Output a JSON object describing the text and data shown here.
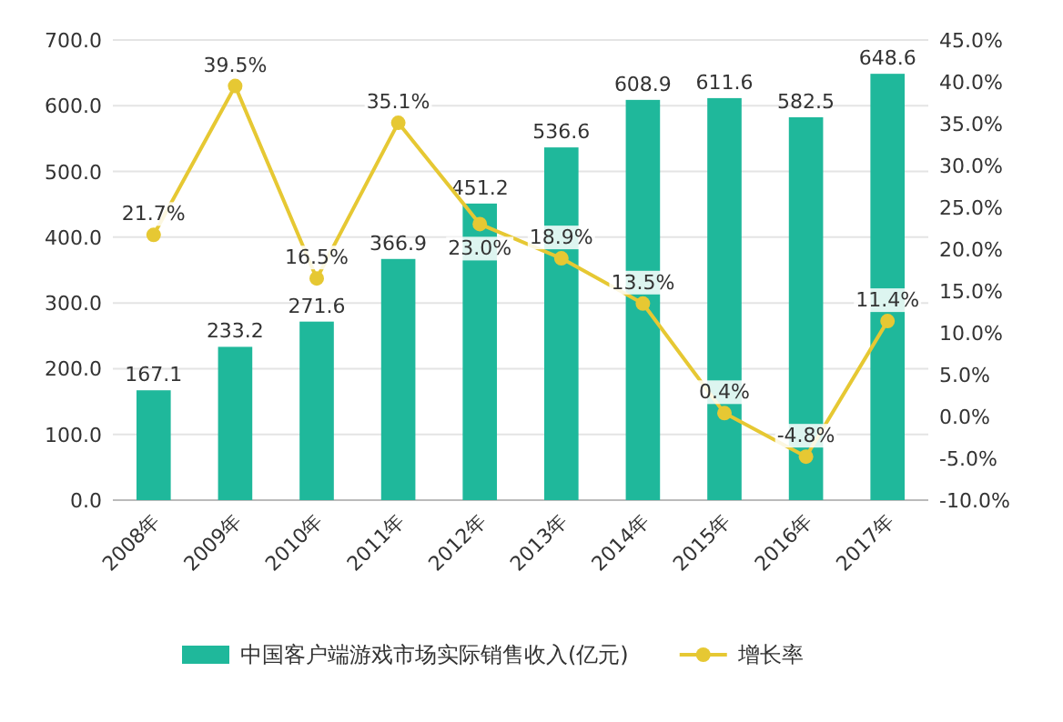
{
  "chart_data": {
    "type": "bar",
    "categories": [
      "2008年",
      "2009年",
      "2010年",
      "2011年",
      "2012年",
      "2013年",
      "2014年",
      "2015年",
      "2016年",
      "2017年"
    ],
    "series": [
      {
        "name": "中国客户端游戏市场实际销售收入(亿元)",
        "color": "#1fb89b",
        "values": [
          167.1,
          233.2,
          271.6,
          366.9,
          451.2,
          536.6,
          608.9,
          611.6,
          582.5,
          648.6
        ],
        "value_labels": [
          "167.1",
          "233.2",
          "271.6",
          "366.9",
          "451.2",
          "536.6",
          "608.9",
          "611.6",
          "582.5",
          "648.6"
        ]
      },
      {
        "name": "增长率",
        "type": "line",
        "axis": "y2",
        "color": "#e6c833",
        "marker": "circle",
        "values": [
          21.7,
          39.5,
          16.5,
          35.1,
          23.0,
          18.9,
          13.5,
          0.4,
          -4.8,
          11.4
        ],
        "value_labels": [
          "21.7%",
          "39.5%",
          "16.5%",
          "35.1%",
          "23.0%",
          "18.9%",
          "13.5%",
          "0.4%",
          "-4.8%",
          "11.4%"
        ]
      }
    ],
    "ylim": [
      0,
      700
    ],
    "yticks": [
      {
        "value": 0,
        "label": "0.0"
      },
      {
        "value": 100,
        "label": "100.0"
      },
      {
        "value": 200,
        "label": "200.0"
      },
      {
        "value": 300,
        "label": "300.0"
      },
      {
        "value": 400,
        "label": "400.0"
      },
      {
        "value": 500,
        "label": "500.0"
      },
      {
        "value": 600,
        "label": "600.0"
      },
      {
        "value": 700,
        "label": "700.0"
      }
    ],
    "y2lim": [
      -10,
      45
    ],
    "y2ticks": [
      {
        "value": -10,
        "label": "-10.0%"
      },
      {
        "value": -5,
        "label": "-5.0%"
      },
      {
        "value": 0,
        "label": "0.0%"
      },
      {
        "value": 5,
        "label": "5.0%"
      },
      {
        "value": 10,
        "label": "10.0%"
      },
      {
        "value": 15,
        "label": "15.0%"
      },
      {
        "value": 20,
        "label": "20.0%"
      },
      {
        "value": 25,
        "label": "25.0%"
      },
      {
        "value": 30,
        "label": "30.0%"
      },
      {
        "value": 35,
        "label": "35.0%"
      },
      {
        "value": 40,
        "label": "40.0%"
      },
      {
        "value": 45,
        "label": "45.0%"
      }
    ],
    "grid": "y",
    "legend": "bottom"
  }
}
